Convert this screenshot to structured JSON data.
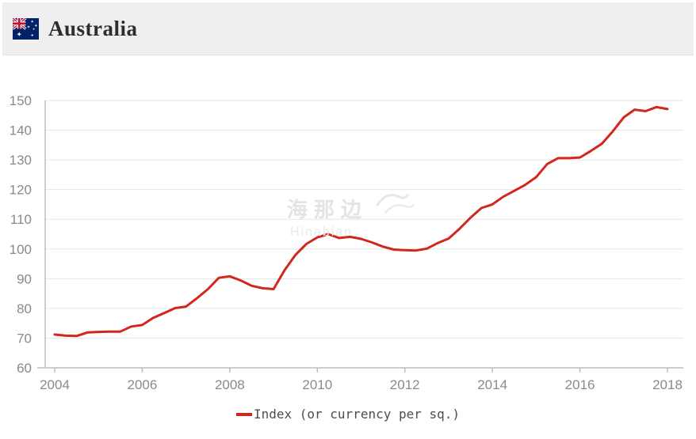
{
  "header": {
    "title": "Australia",
    "flag": "australia-flag",
    "background": "#efefef"
  },
  "watermark": {
    "cn": "海那边",
    "en": "Hinabian"
  },
  "legend": {
    "label": "Index (or currency per sq.)",
    "marker_color": "#d3271e"
  },
  "chart_data": {
    "type": "line",
    "title": "",
    "xlabel": "",
    "ylabel": "",
    "series_name": "Index (or currency per sq.)",
    "x_start": 2004,
    "x_step": 0.25,
    "values": [
      71.2,
      70.8,
      70.7,
      71.9,
      72.1,
      72.2,
      72.2,
      73.9,
      74.4,
      76.8,
      78.4,
      80.1,
      80.6,
      83.4,
      86.5,
      90.3,
      90.8,
      89.4,
      87.6,
      86.8,
      86.5,
      92.8,
      98.0,
      101.7,
      103.9,
      105.0,
      103.7,
      104.1,
      103.4,
      102.2,
      100.8,
      99.8,
      99.6,
      99.5,
      100.1,
      102.0,
      103.5,
      106.8,
      110.5,
      113.8,
      115.0,
      117.6,
      119.6,
      121.6,
      124.2,
      128.6,
      130.6,
      130.6,
      130.8,
      133.0,
      135.4,
      139.6,
      144.3,
      146.9,
      146.4,
      147.8,
      147.1
    ],
    "xticks": [
      2004,
      2006,
      2008,
      2010,
      2012,
      2014,
      2016,
      2018
    ],
    "yticks": [
      60,
      70,
      80,
      90,
      100,
      110,
      120,
      130,
      140,
      150
    ],
    "xlim": [
      2004,
      2018
    ],
    "ylim": [
      60,
      150
    ],
    "grid": true,
    "legend_position": "bottom",
    "line_color": "#d3271e",
    "line_width": 3,
    "grid_color": "#e5e5e5",
    "axis_color": "#bdbdbd",
    "tick_label_color": "#8a8a8a",
    "tick_label_size": 17
  }
}
